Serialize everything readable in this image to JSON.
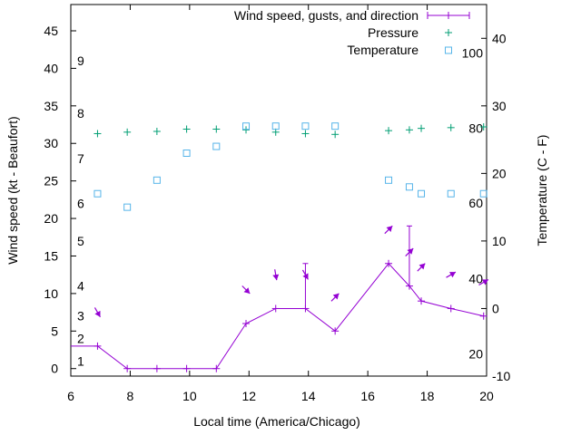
{
  "chart_data": {
    "type": "line",
    "title": "",
    "xlabel": "Local time (America/Chicago)",
    "ylabel_left": "Wind speed (kt - Beaufort)",
    "ylabel_right": "Temperature (C - F)",
    "xlim": [
      6,
      20
    ],
    "ylim_left": [
      -1,
      48.5
    ],
    "ylim_right": [
      -10,
      45
    ],
    "x_ticks": [
      "6",
      "8",
      "10",
      "12",
      "14",
      "16",
      "18",
      "20"
    ],
    "y_left_ticks": [
      "0",
      "5",
      "10",
      "15",
      "20",
      "25",
      "30",
      "35",
      "40",
      "45"
    ],
    "y_right_ticks": [
      "-10",
      "0",
      "10",
      "20",
      "30",
      "40"
    ],
    "beaufort_ticks": [
      {
        "label": "1",
        "kt": 1
      },
      {
        "label": "2",
        "kt": 4
      },
      {
        "label": "3",
        "kt": 7
      },
      {
        "label": "4",
        "kt": 11
      },
      {
        "label": "5",
        "kt": 17
      },
      {
        "label": "6",
        "kt": 22
      },
      {
        "label": "7",
        "kt": 28
      },
      {
        "label": "8",
        "kt": 34
      },
      {
        "label": "9",
        "kt": 41
      }
    ],
    "fahrenheit_ticks": [
      {
        "label": "20",
        "c": -6.7
      },
      {
        "label": "40",
        "c": 4.4
      },
      {
        "label": "60",
        "c": 15.6
      },
      {
        "label": "80",
        "c": 26.7
      },
      {
        "label": "100",
        "c": 37.8
      }
    ],
    "legend": {
      "wind": "Wind speed, gusts, and direction",
      "pressure": "Pressure",
      "temperature": "Temperature"
    },
    "colors": {
      "wind": "#9400d3",
      "pressure": "#009e73",
      "temperature": "#56b4e9"
    },
    "series": [
      {
        "name": "Wind speed, gusts, and direction",
        "points": [
          {
            "x": 6.0,
            "y": 3
          },
          {
            "x": 6.9,
            "y": 3,
            "dir_deg": 330
          },
          {
            "x": 7.9,
            "y": 0
          },
          {
            "x": 8.9,
            "y": 0
          },
          {
            "x": 9.9,
            "y": 0
          },
          {
            "x": 10.9,
            "y": 0
          },
          {
            "x": 11.9,
            "y": 6,
            "dir_deg": 315
          },
          {
            "x": 12.9,
            "y": 8,
            "dir_deg": 350
          },
          {
            "x": 13.9,
            "y": 8,
            "gust": 14,
            "dir_deg": 330
          },
          {
            "x": 14.9,
            "y": 5,
            "dir_deg": 225
          },
          {
            "x": 16.7,
            "y": 14,
            "dir_deg": 225
          },
          {
            "x": 17.4,
            "y": 11,
            "gust": 19,
            "dir_deg": 225
          },
          {
            "x": 17.8,
            "y": 9,
            "dir_deg": 225
          },
          {
            "x": 18.8,
            "y": 8,
            "dir_deg": 240
          },
          {
            "x": 19.9,
            "y": 7,
            "dir_deg": 240
          }
        ]
      },
      {
        "name": "Pressure",
        "points": [
          {
            "x": 6.9,
            "y": 31.3
          },
          {
            "x": 7.9,
            "y": 31.5
          },
          {
            "x": 8.9,
            "y": 31.6
          },
          {
            "x": 9.9,
            "y": 31.9
          },
          {
            "x": 10.9,
            "y": 31.9
          },
          {
            "x": 11.9,
            "y": 31.8
          },
          {
            "x": 12.9,
            "y": 31.5
          },
          {
            "x": 13.9,
            "y": 31.3
          },
          {
            "x": 14.9,
            "y": 31.2
          },
          {
            "x": 16.7,
            "y": 31.7
          },
          {
            "x": 17.4,
            "y": 31.8
          },
          {
            "x": 17.8,
            "y": 32.0
          },
          {
            "x": 18.8,
            "y": 32.1
          },
          {
            "x": 19.9,
            "y": 32.2
          }
        ]
      },
      {
        "name": "Temperature",
        "points": [
          {
            "x": 6.9,
            "y": 17
          },
          {
            "x": 7.9,
            "y": 15
          },
          {
            "x": 8.9,
            "y": 19
          },
          {
            "x": 9.9,
            "y": 23
          },
          {
            "x": 10.9,
            "y": 24
          },
          {
            "x": 11.9,
            "y": 27
          },
          {
            "x": 12.9,
            "y": 27
          },
          {
            "x": 13.9,
            "y": 27
          },
          {
            "x": 14.9,
            "y": 27
          },
          {
            "x": 16.7,
            "y": 19
          },
          {
            "x": 17.4,
            "y": 18
          },
          {
            "x": 17.8,
            "y": 17
          },
          {
            "x": 18.8,
            "y": 17
          },
          {
            "x": 19.9,
            "y": 17
          }
        ]
      }
    ]
  }
}
